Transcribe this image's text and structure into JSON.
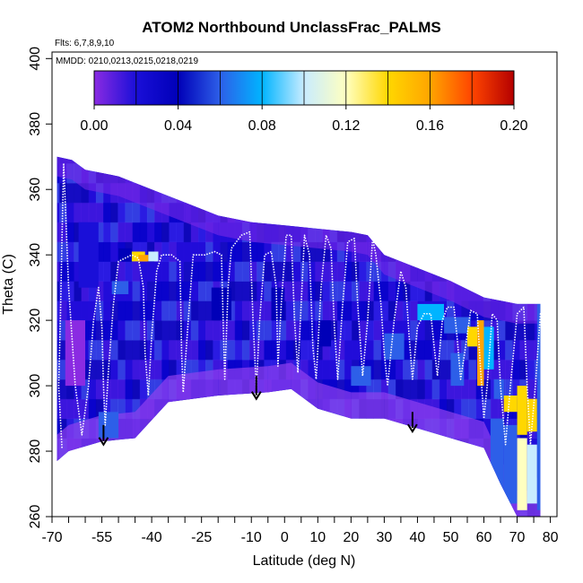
{
  "chart_data": {
    "type": "heatmap",
    "title": "ATOM2 Northbound UnclassFrac_PALMS",
    "flights_note": "Flts: 6,7,8,9,10",
    "dates_note": "MMDD: 0210,0213,0215,0218,0219",
    "xlabel": "Latitude (deg N)",
    "ylabel": "Theta (C)",
    "xlim": [
      -70,
      82
    ],
    "ylim": [
      260,
      402
    ],
    "x_ticks": [
      -70,
      -55,
      -40,
      -25,
      -10,
      0,
      10,
      20,
      30,
      40,
      50,
      60,
      70,
      80
    ],
    "x_ticks_unlabeled": [
      -65,
      -60,
      -50,
      -45,
      -35,
      -30,
      -20,
      -15,
      -5,
      5,
      15,
      25,
      35,
      45,
      55,
      65,
      75
    ],
    "y_ticks": [
      260,
      280,
      300,
      320,
      340,
      360,
      380,
      400
    ],
    "colorbar": {
      "min": 0.0,
      "max": 0.2,
      "step": 0.02,
      "tick_labels": [
        "0.00",
        "0.04",
        "0.08",
        "0.12",
        "0.16",
        "0.20"
      ],
      "tick_values": [
        0.0,
        0.04,
        0.08,
        0.12,
        0.16,
        0.2
      ],
      "colors": [
        "#8a2be2",
        "#1a0fd8",
        "#0000b8",
        "#2d5fe8",
        "#00b4ff",
        "#c8ecff",
        "#ffffc0",
        "#ffd700",
        "#ffa500",
        "#ff4500",
        "#b40000"
      ]
    },
    "coverage_top": [
      [
        -68.5,
        370
      ],
      [
        -64,
        369
      ],
      [
        -60,
        366
      ],
      [
        -50,
        364
      ],
      [
        -40,
        360
      ],
      [
        -30,
        356
      ],
      [
        -20,
        352
      ],
      [
        -10,
        350
      ],
      [
        0,
        349
      ],
      [
        10,
        348
      ],
      [
        20,
        347
      ],
      [
        25,
        346
      ],
      [
        30,
        340
      ],
      [
        40,
        336
      ],
      [
        50,
        332
      ],
      [
        60,
        327
      ],
      [
        70,
        325
      ],
      [
        77,
        325
      ]
    ],
    "coverage_bottom": [
      [
        -68.5,
        277
      ],
      [
        -65,
        280
      ],
      [
        -55,
        283
      ],
      [
        -45,
        284
      ],
      [
        -35,
        295
      ],
      [
        -20,
        297
      ],
      [
        -5,
        298
      ],
      [
        2,
        299
      ],
      [
        10,
        293
      ],
      [
        20,
        290
      ],
      [
        30,
        290
      ],
      [
        40,
        287
      ],
      [
        50,
        284
      ],
      [
        60,
        281
      ],
      [
        65,
        270
      ],
      [
        70,
        260
      ],
      [
        77,
        260
      ]
    ],
    "field_cells": [
      {
        "lat": [
          -50,
          -46
        ],
        "theta": [
          338,
          342
        ],
        "value": 0.05
      },
      {
        "lat": [
          -46,
          -42
        ],
        "theta": [
          338,
          341
        ],
        "value": 0.15
      },
      {
        "lat": [
          -44,
          -41
        ],
        "theta": [
          338,
          340
        ],
        "value": 0.17
      },
      {
        "lat": [
          -41,
          -38
        ],
        "theta": [
          338,
          341
        ],
        "value": 0.11
      },
      {
        "lat": [
          -52,
          -47
        ],
        "theta": [
          328,
          332
        ],
        "value": 0.08
      },
      {
        "lat": [
          -56,
          -50
        ],
        "theta": [
          284,
          292
        ],
        "value": 0.07
      },
      {
        "lat": [
          40,
          48
        ],
        "theta": [
          320,
          325
        ],
        "value": 0.09
      },
      {
        "lat": [
          48,
          56
        ],
        "theta": [
          316,
          321
        ],
        "value": 0.08
      },
      {
        "lat": [
          55,
          58
        ],
        "theta": [
          312,
          318
        ],
        "value": 0.14
      },
      {
        "lat": [
          58,
          60
        ],
        "theta": [
          300,
          320
        ],
        "value": 0.17
      },
      {
        "lat": [
          60,
          63
        ],
        "theta": [
          305,
          318
        ],
        "value": 0.09
      },
      {
        "lat": [
          63,
          66
        ],
        "theta": [
          296,
          302
        ],
        "value": 0.07
      },
      {
        "lat": [
          66,
          70
        ],
        "theta": [
          292,
          297
        ],
        "value": 0.15
      },
      {
        "lat": [
          70,
          73
        ],
        "theta": [
          285,
          300
        ],
        "value": 0.16
      },
      {
        "lat": [
          73,
          76
        ],
        "theta": [
          286,
          296
        ],
        "value": 0.16
      },
      {
        "lat": [
          70,
          73
        ],
        "theta": [
          262,
          284
        ],
        "value": 0.12
      },
      {
        "lat": [
          73,
          76
        ],
        "theta": [
          264,
          282
        ],
        "value": 0.11
      },
      {
        "lat": [
          66,
          70
        ],
        "theta": [
          264,
          288
        ],
        "value": 0.08
      },
      {
        "lat": [
          62,
          66
        ],
        "theta": [
          268,
          290
        ],
        "value": 0.07
      },
      {
        "lat": [
          76,
          79
        ],
        "theta": [
          262,
          296
        ],
        "value": 0.08
      },
      {
        "lat": [
          76,
          79
        ],
        "theta": [
          296,
          325
        ],
        "value": 0.06
      },
      {
        "lat": [
          -4,
          0
        ],
        "theta": [
          320,
          330
        ],
        "value": 0.05
      },
      {
        "lat": [
          30,
          36
        ],
        "theta": [
          308,
          316
        ],
        "value": 0.06
      },
      {
        "lat": [
          10,
          14
        ],
        "theta": [
          312,
          320
        ],
        "value": 0.05
      },
      {
        "lat": [
          -22,
          -16
        ],
        "theta": [
          320,
          330
        ],
        "value": 0.05
      },
      {
        "lat": [
          20,
          26
        ],
        "theta": [
          300,
          306
        ],
        "value": 0.06
      },
      {
        "lat": [
          50,
          54
        ],
        "theta": [
          300,
          310
        ],
        "value": 0.07
      },
      {
        "lat": [
          -66,
          -60
        ],
        "theta": [
          300,
          320
        ],
        "value": 0.02
      },
      {
        "lat": [
          -62,
          -56
        ],
        "theta": [
          330,
          350
        ],
        "value": 0.03
      }
    ],
    "flight_track": [
      [
        -67,
        281
      ],
      [
        -68,
        300
      ],
      [
        -67.5,
        320
      ],
      [
        -67,
        345
      ],
      [
        -66.5,
        368
      ],
      [
        -65,
        330
      ],
      [
        -63,
        300
      ],
      [
        -61,
        285
      ],
      [
        -59,
        300
      ],
      [
        -57.5,
        320
      ],
      [
        -56,
        330
      ],
      [
        -55,
        318
      ],
      [
        -54.5,
        300
      ],
      [
        -54,
        288
      ],
      [
        -53,
        305
      ],
      [
        -51.5,
        325
      ],
      [
        -50,
        338
      ],
      [
        -48,
        339
      ],
      [
        -46,
        340
      ],
      [
        -44,
        339
      ],
      [
        -42.5,
        330
      ],
      [
        -42,
        310
      ],
      [
        -41,
        297
      ],
      [
        -40,
        315
      ],
      [
        -38.5,
        335
      ],
      [
        -37,
        340
      ],
      [
        -34,
        340
      ],
      [
        -31.5,
        338
      ],
      [
        -31,
        310
      ],
      [
        -30.5,
        298
      ],
      [
        -29,
        320
      ],
      [
        -27.5,
        340
      ],
      [
        -24,
        340
      ],
      [
        -21,
        341
      ],
      [
        -19,
        340
      ],
      [
        -18.5,
        320
      ],
      [
        -18,
        302
      ],
      [
        -17,
        330
      ],
      [
        -16,
        342
      ],
      [
        -13,
        346
      ],
      [
        -10.5,
        347
      ],
      [
        -9.5,
        320
      ],
      [
        -8.5,
        299
      ],
      [
        -7.5,
        320
      ],
      [
        -6,
        340
      ],
      [
        -4,
        341
      ],
      [
        -2.5,
        330
      ],
      [
        -2,
        306
      ],
      [
        -1,
        325
      ],
      [
        0.5,
        346
      ],
      [
        2,
        346
      ],
      [
        3,
        320
      ],
      [
        4,
        304
      ],
      [
        5,
        325
      ],
      [
        6,
        346
      ],
      [
        7.5,
        340
      ],
      [
        8.5,
        312
      ],
      [
        9.5,
        302
      ],
      [
        11,
        330
      ],
      [
        12.5,
        346
      ],
      [
        14,
        342
      ],
      [
        15,
        318
      ],
      [
        16,
        302
      ],
      [
        17.5,
        325
      ],
      [
        19,
        344
      ],
      [
        21,
        345
      ],
      [
        22,
        325
      ],
      [
        23.5,
        303
      ],
      [
        25,
        320
      ],
      [
        26.5,
        345
      ],
      [
        27.5,
        340
      ],
      [
        29,
        325
      ],
      [
        30,
        310
      ],
      [
        31,
        300
      ],
      [
        33,
        320
      ],
      [
        35,
        335
      ],
      [
        36.5,
        330
      ],
      [
        37.5,
        315
      ],
      [
        38.5,
        302
      ],
      [
        40,
        318
      ],
      [
        42,
        322
      ],
      [
        44,
        322
      ],
      [
        45,
        312
      ],
      [
        46,
        303
      ],
      [
        47.5,
        320
      ],
      [
        49,
        324
      ],
      [
        51,
        324
      ],
      [
        52,
        314
      ],
      [
        53,
        302
      ],
      [
        54.5,
        312
      ],
      [
        56,
        323
      ],
      [
        58,
        322
      ],
      [
        59,
        305
      ],
      [
        60,
        290
      ],
      [
        61,
        300
      ],
      [
        62.5,
        322
      ],
      [
        64,
        320
      ],
      [
        65,
        300
      ],
      [
        66.5,
        282
      ],
      [
        68,
        300
      ],
      [
        70,
        322
      ],
      [
        72,
        324
      ],
      [
        73,
        300
      ],
      [
        74,
        282
      ],
      [
        75.5,
        300
      ],
      [
        77,
        322
      ],
      [
        78.5,
        324
      ],
      [
        79.5,
        300
      ],
      [
        80,
        280
      ]
    ],
    "arrows": [
      {
        "lat": -54.5,
        "theta_from": 288,
        "theta_to": 282
      },
      {
        "lat": -8.5,
        "theta_from": 303,
        "theta_to": 296
      },
      {
        "lat": 38.5,
        "theta_from": 292,
        "theta_to": 286
      }
    ]
  }
}
